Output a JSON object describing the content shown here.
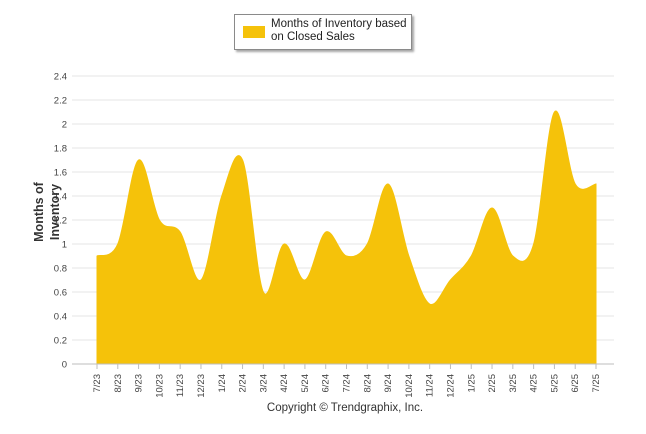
{
  "legend": {
    "label": "Months of Inventory based on Closed Sales"
  },
  "colors": {
    "series": "#F5C20A",
    "grid": "#e6e6e6",
    "axis": "#bdbdbd",
    "tick_text": "#444444"
  },
  "footer": {
    "copyright": "Copyright © Trendgraphix, Inc."
  },
  "chart_data": {
    "type": "area",
    "title": "",
    "xlabel": "",
    "ylabel": "Months of Inventory",
    "ylim": [
      0,
      2.4
    ],
    "yticks": [
      0,
      0.2,
      0.4,
      0.6,
      0.8,
      1,
      1.2,
      1.4,
      1.6,
      1.8,
      2,
      2.2,
      2.4
    ],
    "grid": true,
    "legend_position": "top-center",
    "categories": [
      "7/23",
      "8/23",
      "9/23",
      "10/23",
      "11/23",
      "12/23",
      "1/24",
      "2/24",
      "3/24",
      "4/24",
      "5/24",
      "6/24",
      "7/24",
      "8/24",
      "9/24",
      "10/24",
      "11/24",
      "12/24",
      "1/25",
      "2/25",
      "3/25",
      "4/25",
      "5/25",
      "6/25",
      "7/25"
    ],
    "series": [
      {
        "name": "Months of Inventory based on Closed Sales",
        "values": [
          0.9,
          1.0,
          1.7,
          1.2,
          1.1,
          0.7,
          1.4,
          1.7,
          0.6,
          1.0,
          0.7,
          1.1,
          0.9,
          1.0,
          1.5,
          0.9,
          0.5,
          0.7,
          0.9,
          1.3,
          0.9,
          1.0,
          2.1,
          1.5,
          1.5
        ]
      }
    ]
  }
}
